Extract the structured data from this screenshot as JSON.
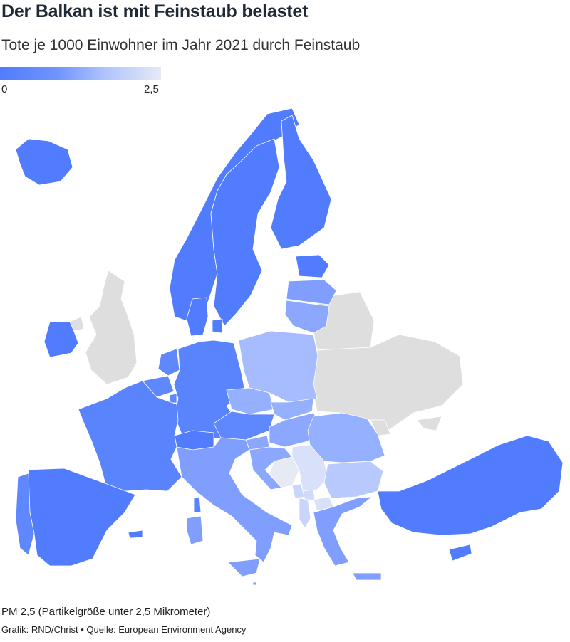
{
  "title": "Der Balkan ist mit Feinstaub belastet",
  "subtitle": "Tote je 1000 Einwohner im Jahr 2021 durch Feinstaub",
  "legend": {
    "min_label": "0",
    "max_label": "2,5",
    "min": 0,
    "max": 2.5,
    "color_low": "#527cfe",
    "color_high": "#e6eaf3",
    "no_data_color": "#dedede"
  },
  "note": "PM 2,5 (Partikelgröße unter 2,5 Mikrometer)",
  "credit": "Grafik: RND/Christ • Quelle: European Environment Agency"
}
